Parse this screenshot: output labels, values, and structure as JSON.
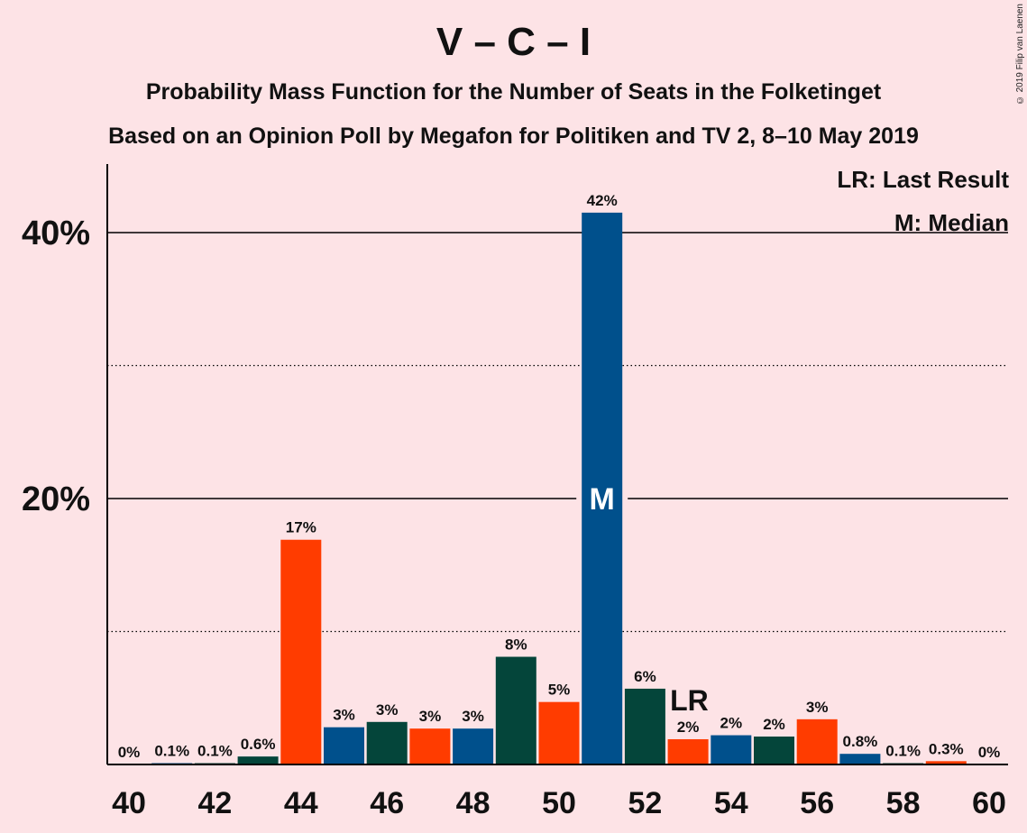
{
  "title": "V – C – I",
  "subtitle1": "Probability Mass Function for the Number of Seats in the Folketinget",
  "subtitle2": "Based on an Opinion Poll by Megafon for Politiken and TV 2, 8–10 May 2019",
  "copyright": "© 2019 Filip van Laenen",
  "legend": {
    "lr": "LR: Last Result",
    "median": "M: Median"
  },
  "markers": {
    "median_label": "M",
    "last_result_label": "LR",
    "median_seat": 51,
    "last_result_seat": 53
  },
  "colors": {
    "blue": "#00508C",
    "orange": "#FF3C00",
    "green": "#04453A",
    "background": "#FDE3E6"
  },
  "chart_data": {
    "type": "bar",
    "x": [
      40,
      41,
      42,
      43,
      44,
      45,
      46,
      47,
      48,
      49,
      50,
      51,
      52,
      53,
      54,
      55,
      56,
      57,
      58,
      59,
      60
    ],
    "values": [
      0,
      0.1,
      0.1,
      0.6,
      16.9,
      2.8,
      3.2,
      2.7,
      2.7,
      8.1,
      4.7,
      41.5,
      5.7,
      1.9,
      2.2,
      2.1,
      3.4,
      0.8,
      0.1,
      0.25,
      0
    ],
    "labels": [
      "0%",
      "0.1%",
      "0.1%",
      "0.6%",
      "17%",
      "3%",
      "3%",
      "3%",
      "3%",
      "8%",
      "5%",
      "42%",
      "6%",
      "2%",
      "2%",
      "2%",
      "3%",
      "0.8%",
      "0.1%",
      "0.3%",
      "0%"
    ],
    "bar_colors": [
      "blue",
      "blue",
      "green",
      "green",
      "orange",
      "blue",
      "green",
      "orange",
      "blue",
      "green",
      "orange",
      "blue",
      "green",
      "orange",
      "blue",
      "green",
      "orange",
      "blue",
      "green",
      "orange",
      "blue"
    ],
    "x_ticks": [
      "40",
      "42",
      "44",
      "46",
      "48",
      "50",
      "52",
      "54",
      "56",
      "58",
      "60"
    ],
    "y_ticks": [
      "20%",
      "40%"
    ],
    "ylim": [
      0,
      45
    ],
    "grid": {
      "solid": [
        20,
        40
      ],
      "dotted": [
        10,
        30
      ]
    },
    "legend_position": "top-right"
  }
}
